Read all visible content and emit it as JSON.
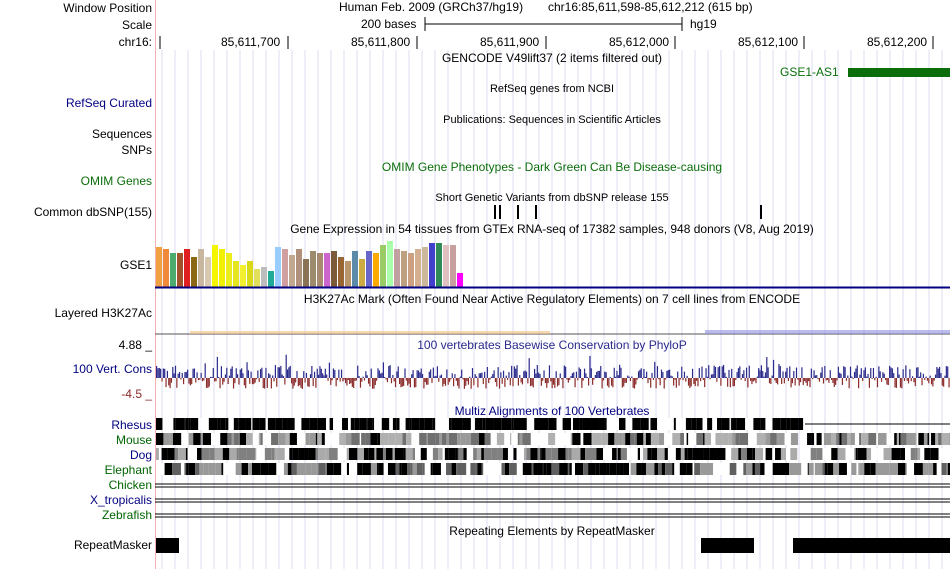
{
  "header": {
    "window_position_label": "Window Position",
    "scale_label": "Scale",
    "chrom_label": "chr16:",
    "assembly": "Human Feb. 2009 (GRCh37/hg19)",
    "position": "chr16:85,611,598-85,612,212 (615 bp)",
    "scale_text": "200 bases",
    "scale_db": "hg19",
    "ruler_ticks": [
      "85,611,700",
      "85,611,800",
      "85,611,900",
      "85,612,000",
      "85,612,100",
      "85,612,200"
    ]
  },
  "tracks": {
    "gencode_title": "GENCODE V49lift37 (2 items filtered out)",
    "gencode_gene": "GSE1-AS1",
    "refseq_label": "RefSeq Curated",
    "refseq_title": "RefSeq genes from NCBI",
    "publications_title": "Publications: Sequences in Scientific Articles",
    "sequences_label": "Sequences",
    "snps_label": "SNPs",
    "omim_title": "OMIM Gene Phenotypes - Dark Green Can Be Disease-causing",
    "omim_label": "OMIM Genes",
    "dbsnp_title": "Short Genetic Variants from dbSNP release 155",
    "dbsnp_label": "Common dbSNP(155)",
    "gtex_title": "Gene Expression in 54 tissues from GTEx RNA-seq of 17382 samples, 948 donors (V8, Aug 2019)",
    "gtex_label": "GSE1",
    "h3k27ac_title": "H3K27Ac Mark (Often Found Near Active Regulatory Elements) on 7 cell lines from ENCODE",
    "h3k27ac_label": "Layered H3K27Ac",
    "cons_title": "100 vertebrates Basewise Conservation by PhyloP",
    "cons_label": "100 Vert. Cons",
    "cons_max": "4.88 _",
    "cons_min": "-4.5 _",
    "multiz_title": "Multiz Alignments of 100 Vertebrates",
    "species": [
      "Rhesus",
      "Mouse",
      "Dog",
      "Elephant",
      "Chicken",
      "X_tropicalis",
      "Zebrafish"
    ],
    "repeat_title": "Repeating Elements by RepeatMasker",
    "repeat_label": "RepeatMasker"
  },
  "colors": {
    "navy": "#000080",
    "dark_green": "#006400",
    "green": "#0b6e0b",
    "cons_pos": "#2a2a8c",
    "cons_neg": "#8b2b2b",
    "gridline": "#d6d6ee",
    "left_border": "#f0b0b0"
  }
}
